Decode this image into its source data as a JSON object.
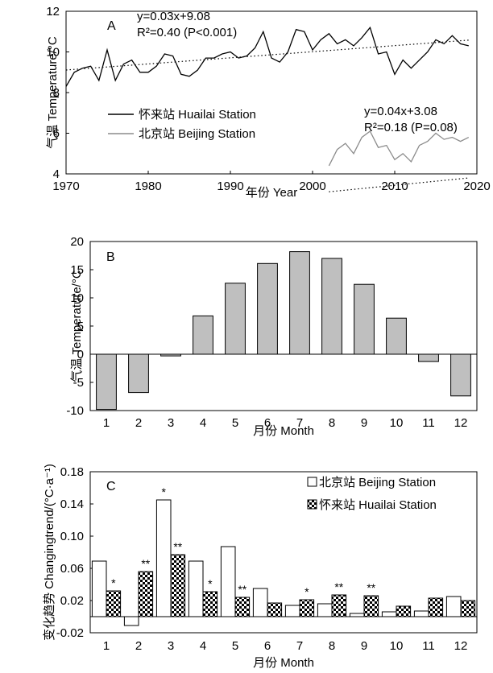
{
  "chart_data": [
    {
      "panel": "A",
      "type": "line",
      "xlabel": "年份 Year",
      "ylabel": "气温 Temperature/°C",
      "xlim": [
        1970,
        2020
      ],
      "ylim": [
        4,
        12
      ],
      "xticks": [
        1970,
        1980,
        1990,
        2000,
        2010,
        2020
      ],
      "yticks": [
        4,
        6,
        8,
        10,
        12
      ],
      "legend": "lower-left",
      "series": [
        {
          "name": "怀来站 Huailai Station",
          "color": "#000000",
          "x": [
            1970,
            1971,
            1972,
            1973,
            1974,
            1975,
            1976,
            1977,
            1978,
            1979,
            1980,
            1981,
            1982,
            1983,
            1984,
            1985,
            1986,
            1987,
            1988,
            1989,
            1990,
            1991,
            1992,
            1993,
            1994,
            1995,
            1996,
            1997,
            1998,
            1999,
            2000,
            2001,
            2002,
            2003,
            2004,
            2005,
            2006,
            2007,
            2008,
            2009,
            2010,
            2011,
            2012,
            2013,
            2014,
            2015,
            2016,
            2017,
            2018,
            2019
          ],
          "values": [
            8.3,
            9.0,
            9.2,
            9.3,
            8.6,
            10.1,
            8.6,
            9.4,
            9.6,
            9.0,
            9.0,
            9.3,
            9.9,
            9.8,
            8.9,
            8.8,
            9.1,
            9.7,
            9.7,
            9.9,
            10.0,
            9.7,
            9.8,
            10.2,
            11.0,
            9.7,
            9.5,
            10.0,
            11.1,
            11.0,
            10.1,
            10.6,
            10.9,
            10.4,
            10.6,
            10.3,
            10.7,
            11.2,
            9.9,
            10.0,
            8.9,
            9.6,
            9.2,
            9.6,
            10.0,
            10.6,
            10.4,
            10.8,
            10.4,
            10.3
          ],
          "trend": {
            "slope": 0.03,
            "intercept": 9.08
          }
        },
        {
          "name": "北京站 Beijing Station",
          "color": "#8c8c8c",
          "x": [
            2002,
            2003,
            2004,
            2005,
            2006,
            2007,
            2008,
            2009,
            2010,
            2011,
            2012,
            2013,
            2014,
            2015,
            2016,
            2017,
            2018,
            2019
          ],
          "values": [
            4.4,
            5.2,
            5.5,
            5.0,
            5.8,
            6.1,
            5.3,
            5.4,
            4.7,
            5.0,
            4.6,
            5.4,
            5.6,
            6.0,
            5.7,
            5.8,
            5.6,
            5.8
          ],
          "trend": {
            "slope": 0.04,
            "intercept": 3.08
          }
        }
      ],
      "annotations": [
        {
          "lines": [
            "y=0.03x+9.08",
            "R²=0.40 (P<0.001)"
          ]
        },
        {
          "lines": [
            "y=0.04x+3.08",
            "R²=0.18 (P=0.08)"
          ]
        }
      ]
    },
    {
      "panel": "B",
      "type": "bar",
      "xlabel": "月份 Month",
      "ylabel": "气温 Temperature/°C",
      "categories": [
        "1",
        "2",
        "3",
        "4",
        "5",
        "6",
        "7",
        "8",
        "9",
        "10",
        "11",
        "12"
      ],
      "values": [
        -9.8,
        -6.8,
        -0.3,
        6.8,
        12.6,
        16.1,
        18.2,
        17.0,
        12.4,
        6.4,
        -1.3,
        -7.4
      ],
      "ylim": [
        -10,
        20
      ],
      "yticks": [
        -10,
        -5,
        0,
        5,
        10,
        15,
        20
      ],
      "bar_color": "#bfbfbf"
    },
    {
      "panel": "C",
      "type": "bar",
      "xlabel": "月份 Month",
      "ylabel": "变化趋势 Changingtrend/(°C·a⁻¹)",
      "categories": [
        "1",
        "2",
        "3",
        "4",
        "5",
        "6",
        "7",
        "8",
        "9",
        "10",
        "11",
        "12"
      ],
      "ylim": [
        -0.02,
        0.18
      ],
      "yticks": [
        "-0.02",
        "0.02",
        "0.06",
        "0.10",
        "0.14",
        "0.18"
      ],
      "legend": "top-right",
      "series": [
        {
          "name": "北京站 Beijing Station",
          "pattern": "white",
          "values": [
            0.069,
            -0.011,
            0.145,
            0.069,
            0.087,
            0.035,
            0.014,
            0.016,
            0.004,
            0.006,
            0.007,
            0.025
          ],
          "significance": [
            "",
            "",
            "*",
            "",
            "",
            "",
            "",
            "",
            "",
            "",
            "",
            ""
          ]
        },
        {
          "name": "怀来站 Huailai Station",
          "pattern": "checker",
          "values": [
            0.032,
            0.056,
            0.077,
            0.031,
            0.024,
            0.017,
            0.021,
            0.027,
            0.026,
            0.013,
            0.023,
            0.02
          ],
          "significance": [
            "*",
            "**",
            "**",
            "*",
            "**",
            "",
            "*",
            "**",
            "**",
            "",
            "",
            ""
          ]
        }
      ]
    }
  ],
  "panel_labels": [
    "A",
    "B",
    "C"
  ]
}
